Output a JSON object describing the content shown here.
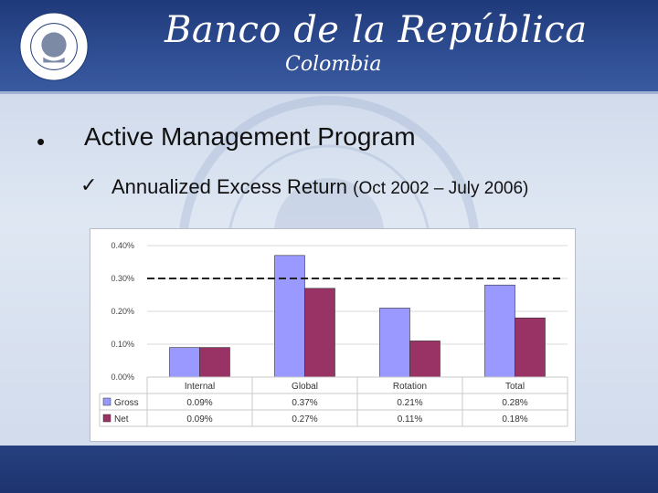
{
  "header": {
    "title": "Banco de la República",
    "subtitle": "Colombia",
    "seal_text": "BANCO DE LA REPÚBLICA",
    "seal_bottom": "COLOMBIA"
  },
  "slide": {
    "bullet": "•",
    "heading": "Active Management Program",
    "check": "✓",
    "subheading": "Annualized Excess Return",
    "subheading_period": "(Oct 2002 – July 2006)"
  },
  "colors": {
    "header": "#1f3a7a",
    "gross": "#9999ff",
    "net": "#993366"
  },
  "chart_data": {
    "type": "bar",
    "categories": [
      "Internal",
      "Global",
      "Rotation",
      "Total"
    ],
    "series": [
      {
        "name": "Gross",
        "values": [
          0.09,
          0.37,
          0.21,
          0.28
        ],
        "labels": [
          "0.09%",
          "0.37%",
          "0.21%",
          "0.28%"
        ]
      },
      {
        "name": "Net",
        "values": [
          0.09,
          0.27,
          0.11,
          0.18
        ],
        "labels": [
          "0.09%",
          "0.27%",
          "0.11%",
          "0.18%"
        ]
      }
    ],
    "yticks": [
      "0.00%",
      "0.10%",
      "0.20%",
      "0.30%",
      "0.40%"
    ],
    "ylim": [
      0,
      0.4
    ],
    "reference_line": 0.3,
    "grid": true,
    "legend": "data-table"
  }
}
